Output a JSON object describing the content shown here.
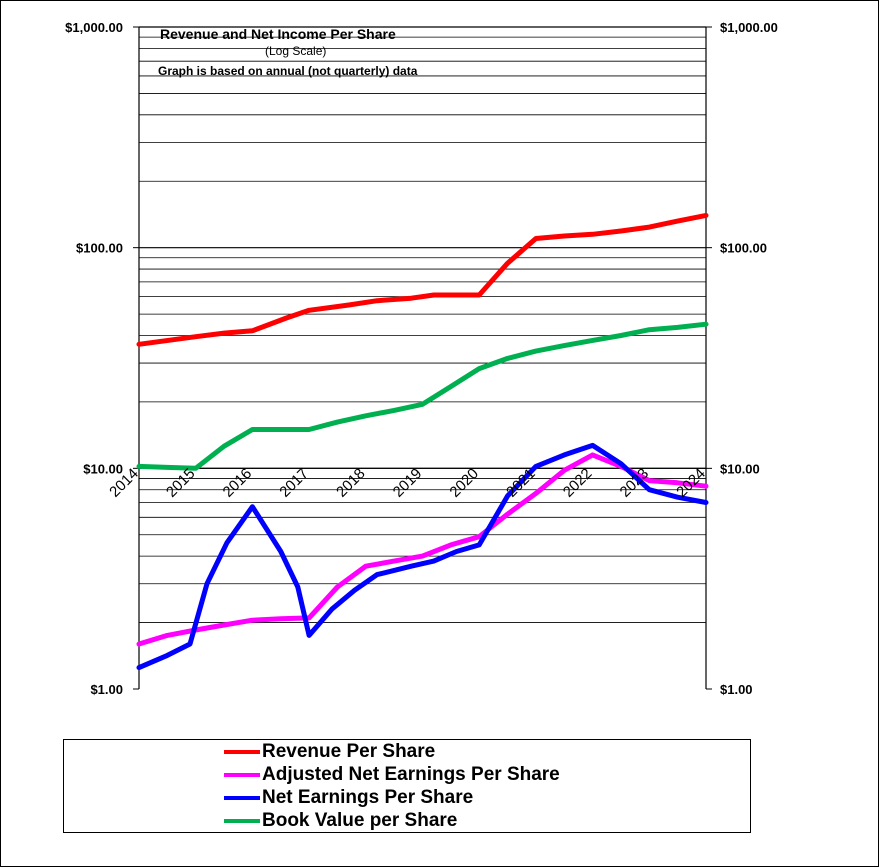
{
  "chart_data": {
    "type": "line",
    "title": "Revenue  and Net Income  Per Share",
    "subtitle": "(Log Scale)",
    "note": "Graph is based on annual (not quarterly) data",
    "y_scale": "log",
    "ylim": [
      1,
      1000
    ],
    "grid": true,
    "legend_position": "bottom",
    "y_tick_labels": [
      "$1.00",
      "$10.00",
      "$100.00",
      "$1,000.00"
    ],
    "y_tick_values": [
      1,
      10,
      100,
      1000
    ],
    "x_tick_labels": [
      "2014",
      "2015",
      "2016",
      "2017",
      "2018",
      "2019",
      "2020",
      "2021",
      "2022",
      "2023",
      "2024"
    ],
    "x": [
      2014.0,
      2014.5,
      2015.0,
      2015.5,
      2016.0,
      2016.5,
      2017.0,
      2017.5,
      2018.0,
      2018.5,
      2019.0,
      2019.5,
      2020.0,
      2020.5,
      2021.0,
      2021.5,
      2022.0,
      2022.5,
      2023.0,
      2023.5,
      2024.0
    ],
    "series": [
      {
        "name": "Revenue Per Share",
        "color": "#ff0000",
        "points": [
          [
            2014.0,
            36.5
          ],
          [
            2015.0,
            39.5
          ],
          [
            2015.5,
            41
          ],
          [
            2016.0,
            42
          ],
          [
            2016.6,
            48
          ],
          [
            2017.0,
            52
          ],
          [
            2017.7,
            55
          ],
          [
            2018.2,
            57.5
          ],
          [
            2018.8,
            59
          ],
          [
            2019.2,
            61
          ],
          [
            2020.0,
            61
          ],
          [
            2020.5,
            85
          ],
          [
            2021.0,
            110
          ],
          [
            2021.5,
            113
          ],
          [
            2022.0,
            115
          ],
          [
            2022.5,
            119
          ],
          [
            2023.0,
            124
          ],
          [
            2023.5,
            132
          ],
          [
            2024.0,
            140
          ]
        ]
      },
      {
        "name": "Adjusted Net Earnings Per Share",
        "color": "#ff00ff",
        "points": [
          [
            2014.0,
            1.6
          ],
          [
            2014.5,
            1.75
          ],
          [
            2015.0,
            1.85
          ],
          [
            2015.5,
            1.95
          ],
          [
            2016.0,
            2.05
          ],
          [
            2016.5,
            2.08
          ],
          [
            2017.0,
            2.1
          ],
          [
            2017.5,
            2.9
          ],
          [
            2018.0,
            3.6
          ],
          [
            2018.5,
            3.8
          ],
          [
            2019.0,
            4.0
          ],
          [
            2019.5,
            4.5
          ],
          [
            2020.0,
            4.9
          ],
          [
            2020.5,
            6.2
          ],
          [
            2021.0,
            7.7
          ],
          [
            2021.5,
            9.8
          ],
          [
            2022.0,
            11.5
          ],
          [
            2022.5,
            10.2
          ],
          [
            2023.0,
            8.8
          ],
          [
            2023.5,
            8.6
          ],
          [
            2024.0,
            8.3
          ]
        ]
      },
      {
        "name": "Net Earnings Per Share",
        "color": "#0000ff",
        "points": [
          [
            2014.0,
            1.25
          ],
          [
            2014.5,
            1.42
          ],
          [
            2014.9,
            1.6
          ],
          [
            2015.2,
            3.0
          ],
          [
            2015.55,
            4.6
          ],
          [
            2016.0,
            6.7
          ],
          [
            2016.5,
            4.2
          ],
          [
            2016.8,
            2.9
          ],
          [
            2017.0,
            1.75
          ],
          [
            2017.4,
            2.3
          ],
          [
            2017.8,
            2.8
          ],
          [
            2018.2,
            3.3
          ],
          [
            2018.8,
            3.6
          ],
          [
            2019.2,
            3.8
          ],
          [
            2019.6,
            4.2
          ],
          [
            2020.0,
            4.5
          ],
          [
            2020.5,
            7.5
          ],
          [
            2021.0,
            10.2
          ],
          [
            2021.5,
            11.5
          ],
          [
            2022.0,
            12.7
          ],
          [
            2022.5,
            10.5
          ],
          [
            2023.0,
            8.0
          ],
          [
            2023.5,
            7.4
          ],
          [
            2024.0,
            7.0
          ]
        ]
      },
      {
        "name": "Book Value per Share",
        "color": "#00b050",
        "points": [
          [
            2014.0,
            10.2
          ],
          [
            2014.5,
            10.1
          ],
          [
            2015.0,
            10.0
          ],
          [
            2015.5,
            12.6
          ],
          [
            2016.0,
            15.0
          ],
          [
            2016.5,
            15.0
          ],
          [
            2017.0,
            15.0
          ],
          [
            2017.5,
            16.2
          ],
          [
            2018.0,
            17.3
          ],
          [
            2018.5,
            18.3
          ],
          [
            2019.0,
            19.5
          ],
          [
            2019.5,
            23.5
          ],
          [
            2020.0,
            28.3
          ],
          [
            2020.5,
            31.5
          ],
          [
            2021.0,
            34.0
          ],
          [
            2021.5,
            36.0
          ],
          [
            2022.0,
            38.0
          ],
          [
            2022.5,
            40.0
          ],
          [
            2023.0,
            42.5
          ],
          [
            2023.5,
            43.5
          ],
          [
            2024.0,
            45.0
          ]
        ]
      }
    ]
  }
}
